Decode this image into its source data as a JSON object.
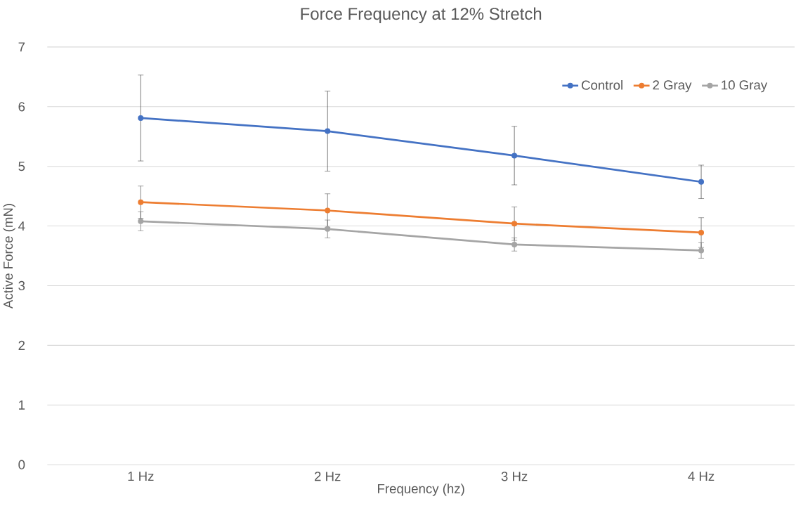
{
  "chart_data": {
    "type": "line",
    "title": "Force Frequency at 12% Stretch",
    "xlabel": "Frequency (hz)",
    "ylabel": "Active Force (mN)",
    "categories": [
      "1 Hz",
      "2 Hz",
      "3 Hz",
      "4 Hz"
    ],
    "series": [
      {
        "name": "Control",
        "color": "#4472c4",
        "values": [
          5.81,
          5.59,
          5.18,
          4.74
        ],
        "errors": [
          0.72,
          0.67,
          0.49,
          0.28
        ]
      },
      {
        "name": "2 Gray",
        "color": "#ed7d31",
        "values": [
          4.4,
          4.26,
          4.04,
          3.89
        ],
        "errors": [
          0.27,
          0.28,
          0.28,
          0.25
        ]
      },
      {
        "name": "10 Gray",
        "color": "#a5a5a5",
        "values": [
          4.08,
          3.95,
          3.69,
          3.59
        ],
        "errors": [
          0.16,
          0.15,
          0.11,
          0.13
        ]
      }
    ],
    "ylim": [
      0,
      7
    ],
    "yticks": [
      0,
      1,
      2,
      3,
      4,
      5,
      6,
      7
    ],
    "grid": "y",
    "legend": "top right",
    "marker": "circle",
    "line_style": "solid"
  }
}
